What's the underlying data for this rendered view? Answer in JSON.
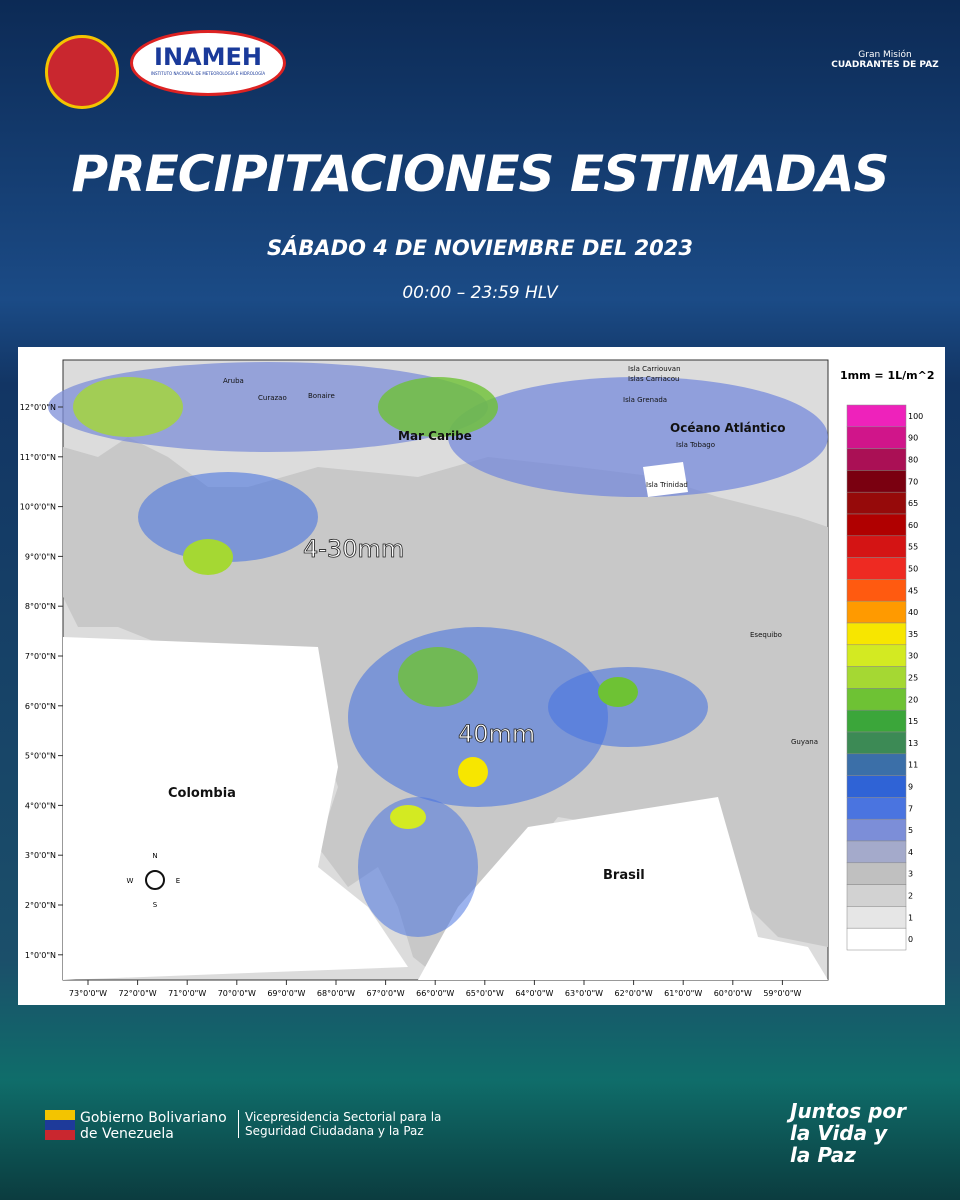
{
  "header": {
    "logo_left": "INAMEH",
    "logo_left_sub": "INSTITUTO NACIONAL DE METEOROLOGÍA E HIDROLOGÍA",
    "logo_right_top": "Gran Misión",
    "logo_right": "CUADRANTES DE PAZ",
    "title": "PRECIPITACIONES ESTIMADAS",
    "date": "SÁBADO 4 DE NOVIEMBRE DEL 2023",
    "time": "00:00 – 23:59 HLV"
  },
  "map": {
    "lat_labels": [
      "12°0'0\"N",
      "11°0'0\"N",
      "10°0'0\"N",
      "9°0'0\"N",
      "8°0'0\"N",
      "7°0'0\"N",
      "6°0'0\"N",
      "5°0'0\"N",
      "4°0'0\"N",
      "3°0'0\"N",
      "2°0'0\"N",
      "1°0'0\"N"
    ],
    "lon_labels": [
      "73°0'0\"W",
      "72°0'0\"W",
      "71°0'0\"W",
      "70°0'0\"W",
      "69°0'0\"W",
      "68°0'0\"W",
      "67°0'0\"W",
      "66°0'0\"W",
      "65°0'0\"W",
      "64°0'0\"W",
      "63°0'0\"W",
      "62°0'0\"W",
      "61°0'0\"W",
      "60°0'0\"W",
      "59°0'0\"W"
    ],
    "places": [
      "Aruba",
      "Curazao",
      "Bonaire",
      "Mar Caribe",
      "Isla Carriouvan",
      "Islas Carriacou",
      "Isla Grenada",
      "Océano Atlántico",
      "Isla Tobago",
      "Isla Trinidad",
      "Esequibo",
      "Guyana",
      "Colombia",
      "Brasil"
    ],
    "annotations": [
      "4-30mm",
      "40mm"
    ],
    "compass": [
      "N",
      "S",
      "E",
      "W"
    ],
    "legend": {
      "title": "1mm = 1L/m^2",
      "levels": [
        100,
        90,
        80,
        70,
        65,
        60,
        55,
        50,
        45,
        40,
        35,
        30,
        25,
        20,
        15,
        13,
        11,
        9,
        7,
        5,
        4,
        3,
        2,
        1,
        0
      ],
      "colors": [
        "#ee22bb",
        "#d0158a",
        "#aa1055",
        "#7a0010",
        "#960a0a",
        "#b00000",
        "#d41414",
        "#ee2a22",
        "#ff5a10",
        "#ff9a00",
        "#f7e600",
        "#d3ea22",
        "#a5d833",
        "#6ec234",
        "#3ba63a",
        "#3c8a55",
        "#3b6fa8",
        "#2f63d6",
        "#4a74e0",
        "#7c8ed8",
        "#a4aacb",
        "#c0c0c0",
        "#d2d2d2",
        "#e6e6e6",
        "#ffffff"
      ]
    }
  },
  "footer": {
    "gov": "Gobierno Bolivariano de Venezuela",
    "vice": "Vicepresidencia Sectorial para la Seguridad Ciudadana y la Paz",
    "slogan": "Juntos por la Vida y la Paz"
  }
}
